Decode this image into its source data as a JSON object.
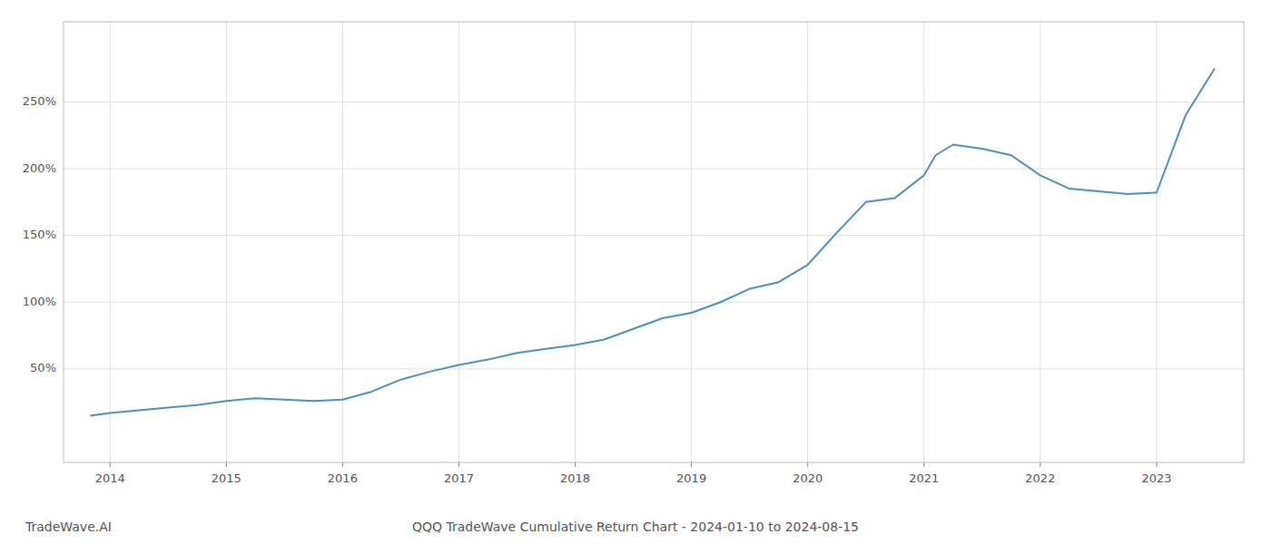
{
  "chart_data": {
    "type": "line",
    "title": "QQQ TradeWave Cumulative Return Chart - 2024-01-10 to 2024-08-15",
    "annotations": [
      "TradeWave.AI"
    ],
    "x": [
      2013.83,
      2014.0,
      2014.25,
      2014.5,
      2014.75,
      2015.0,
      2015.25,
      2015.5,
      2015.75,
      2016.0,
      2016.25,
      2016.5,
      2016.75,
      2017.0,
      2017.25,
      2017.5,
      2017.75,
      2018.0,
      2018.25,
      2018.5,
      2018.75,
      2019.0,
      2019.25,
      2019.5,
      2019.75,
      2020.0,
      2020.25,
      2020.5,
      2020.75,
      2021.0,
      2021.1,
      2021.25,
      2021.5,
      2021.75,
      2022.0,
      2022.25,
      2022.5,
      2022.75,
      2023.0,
      2023.25,
      2023.5
    ],
    "values": [
      15,
      17,
      19,
      21,
      23,
      26,
      28,
      27,
      26,
      27,
      33,
      42,
      48,
      53,
      57,
      62,
      65,
      68,
      72,
      80,
      88,
      92,
      100,
      110,
      115,
      128,
      152,
      175,
      178,
      195,
      210,
      218,
      215,
      210,
      195,
      185,
      183,
      181,
      182,
      240,
      275
    ],
    "color": "#4a90c4",
    "xlim": [
      2013.6,
      2023.75
    ],
    "xticks": [
      2014,
      2015,
      2016,
      2017,
      2018,
      2019,
      2020,
      2021,
      2022,
      2023
    ],
    "ylim": [
      -20,
      310
    ],
    "yticks": [
      {
        "value": 50,
        "label": "50%"
      },
      {
        "value": 100,
        "label": "100%"
      },
      {
        "value": 150,
        "label": "150%"
      },
      {
        "value": 200,
        "label": "200%"
      },
      {
        "value": 250,
        "label": "250%"
      }
    ],
    "grid": true
  }
}
